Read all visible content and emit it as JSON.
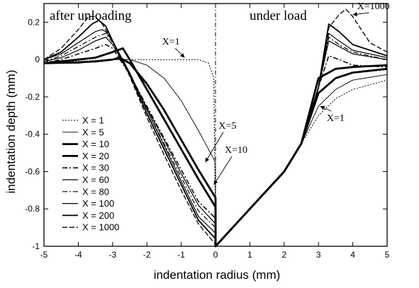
{
  "chart_data": {
    "type": "line",
    "title": "",
    "xlabel": "indentation radius (mm)",
    "ylabel": "indentation depth (mm)",
    "xlim": [
      -5,
      5
    ],
    "ylim": [
      -1,
      0.3
    ],
    "x_ticks": [
      -5,
      -4,
      -3,
      -2,
      -1,
      0,
      1,
      2,
      3,
      4,
      5
    ],
    "y_ticks": [
      0.2,
      0,
      -0.2,
      -0.4,
      -0.6,
      -0.8,
      -1
    ],
    "x_tick_labels": [
      "-5",
      "-4",
      "-3",
      "-2",
      "-1",
      "0",
      "1",
      "2",
      "3",
      "4",
      "5"
    ],
    "y_tick_labels": [
      "0.2",
      "0",
      "-0.2",
      "-0.4",
      "-0.6",
      "-0.8",
      "-1"
    ],
    "panel_labels": {
      "left": "after unloading",
      "right": "under load"
    },
    "divider_x": 0,
    "grid": false,
    "legend_position": "lower-left",
    "annotations": [
      {
        "text": "X=1",
        "x": -1.3,
        "y": 0.08,
        "arrow_to": [
          -0.9,
          0.01
        ]
      },
      {
        "text": "X=5",
        "x": 0.35,
        "y": -0.37,
        "arrow_to": [
          -0.3,
          -0.55
        ]
      },
      {
        "text": "X=10",
        "x": 0.6,
        "y": -0.5,
        "arrow_to": [
          -0.05,
          -0.67
        ]
      },
      {
        "text": "X=1000",
        "x": 4.6,
        "y": 0.27,
        "arrow_to": [
          4.0,
          0.24
        ]
      },
      {
        "text": "X=1",
        "x": 3.5,
        "y": -0.33,
        "arrow_to": [
          3.05,
          -0.25
        ]
      }
    ],
    "series": [
      {
        "name": "X = 1",
        "style": "dotted",
        "width": 1,
        "x": [
          -5,
          -4,
          -3,
          -2,
          -1,
          -0.5,
          -0.2,
          -0.05,
          0,
          0,
          1,
          2,
          2.5,
          3,
          3.5,
          4,
          5
        ],
        "y": [
          -0.01,
          -0.01,
          0.0,
          0.0,
          0.0,
          0.0,
          -0.02,
          -0.1,
          -0.98,
          -1,
          -0.8,
          -0.6,
          -0.45,
          -0.3,
          -0.21,
          -0.16,
          -0.11
        ]
      },
      {
        "name": "X = 5",
        "style": "solid",
        "width": 0.9,
        "x": [
          -5,
          -4,
          -3.5,
          -3,
          -2.5,
          -2,
          -1.5,
          -1,
          -0.5,
          0,
          0,
          1,
          2,
          2.5,
          3,
          3.5,
          4,
          5
        ],
        "y": [
          -0.02,
          -0.02,
          -0.01,
          0.0,
          0.0,
          -0.03,
          -0.1,
          -0.22,
          -0.38,
          -0.55,
          -1,
          -0.8,
          -0.6,
          -0.45,
          -0.25,
          -0.16,
          -0.11,
          -0.08
        ]
      },
      {
        "name": "X = 10",
        "style": "solid",
        "width": 2.8,
        "x": [
          -5,
          -4,
          -3.5,
          -3,
          -2.8,
          -2.5,
          -2,
          -1.5,
          -1,
          -0.5,
          0,
          0,
          1,
          2,
          2.5,
          3,
          3.5,
          4,
          5
        ],
        "y": [
          -0.02,
          -0.015,
          -0.01,
          0.0,
          0.01,
          -0.02,
          -0.13,
          -0.27,
          -0.43,
          -0.59,
          -0.74,
          -1,
          -0.8,
          -0.6,
          -0.45,
          -0.18,
          -0.1,
          -0.07,
          -0.05
        ]
      },
      {
        "name": "X = 20",
        "style": "solid",
        "width": 2.8,
        "x": [
          -5,
          -4.5,
          -4,
          -3.5,
          -3,
          -2.7,
          -2.5,
          -2,
          -1.5,
          -1,
          -0.5,
          0,
          0,
          1,
          2,
          2.5,
          3,
          3.5,
          4,
          5
        ],
        "y": [
          -0.02,
          -0.01,
          0.0,
          0.01,
          0.04,
          0.06,
          0.0,
          -0.16,
          -0.32,
          -0.48,
          -0.64,
          -0.79,
          -1,
          -0.8,
          -0.6,
          -0.45,
          -0.1,
          -0.05,
          -0.04,
          -0.03
        ]
      },
      {
        "name": "X = 30",
        "style": "dashdot",
        "width": 1.5,
        "x": [
          -5,
          -4.5,
          -4,
          -3.5,
          -3.2,
          -3,
          -2.5,
          -2,
          -1.5,
          -1,
          -0.5,
          0,
          0,
          1,
          2,
          2.5,
          3,
          3.3,
          3.6,
          4,
          5
        ],
        "y": [
          -0.02,
          0.0,
          0.03,
          0.06,
          0.08,
          0.06,
          -0.08,
          -0.25,
          -0.42,
          -0.59,
          -0.76,
          -0.85,
          -1,
          -0.8,
          -0.6,
          -0.45,
          -0.15,
          0.02,
          0.0,
          -0.03,
          -0.04
        ]
      },
      {
        "name": "X = 60",
        "style": "solid",
        "width": 1.2,
        "x": [
          -5,
          -4.5,
          -4,
          -3.5,
          -3.2,
          -3,
          -2.5,
          -2,
          -1.5,
          -1,
          -0.5,
          0,
          0,
          1,
          2,
          2.5,
          3,
          3.3,
          3.6,
          4,
          5
        ],
        "y": [
          -0.01,
          0.01,
          0.05,
          0.1,
          0.12,
          0.08,
          -0.08,
          -0.26,
          -0.43,
          -0.61,
          -0.78,
          -0.88,
          -1,
          -0.8,
          -0.6,
          -0.45,
          -0.15,
          0.1,
          0.07,
          0.03,
          0.0
        ]
      },
      {
        "name": "X = 80",
        "style": "dashdot",
        "width": 1.2,
        "x": [
          -5,
          -4.5,
          -4,
          -3.5,
          -3.2,
          -3,
          -2.5,
          -2,
          -1.5,
          -1,
          -0.5,
          0,
          0,
          1,
          2,
          2.5,
          3,
          3.3,
          3.6,
          4,
          5
        ],
        "y": [
          -0.01,
          0.02,
          0.07,
          0.12,
          0.14,
          0.09,
          -0.08,
          -0.27,
          -0.45,
          -0.63,
          -0.81,
          -0.9,
          -1,
          -0.8,
          -0.6,
          -0.45,
          -0.15,
          0.12,
          0.08,
          0.04,
          0.0
        ]
      },
      {
        "name": "X = 100",
        "style": "solid",
        "width": 1.2,
        "x": [
          -5,
          -4.5,
          -4,
          -3.5,
          -3.3,
          -3.2,
          -3,
          -2.5,
          -2,
          -1.5,
          -1,
          -0.5,
          0,
          0,
          1,
          2,
          2.5,
          3,
          3.3,
          3.6,
          4,
          5
        ],
        "y": [
          0.0,
          0.03,
          0.09,
          0.15,
          0.16,
          0.15,
          0.1,
          -0.07,
          -0.27,
          -0.46,
          -0.65,
          -0.84,
          -0.93,
          -1,
          -0.8,
          -0.6,
          -0.45,
          -0.15,
          0.14,
          0.1,
          0.05,
          0.01
        ]
      },
      {
        "name": "X = 200",
        "style": "solid",
        "width": 1.8,
        "x": [
          -5,
          -4.5,
          -4,
          -3.6,
          -3.4,
          -3.2,
          -3,
          -2.5,
          -2,
          -1.5,
          -1,
          -0.5,
          0,
          0,
          1,
          2,
          2.5,
          3,
          3.3,
          3.6,
          4,
          5
        ],
        "y": [
          0.0,
          0.04,
          0.12,
          0.19,
          0.21,
          0.18,
          0.1,
          -0.08,
          -0.29,
          -0.48,
          -0.67,
          -0.86,
          -0.96,
          -1,
          -0.8,
          -0.6,
          -0.45,
          -0.15,
          0.19,
          0.15,
          0.08,
          0.02
        ]
      },
      {
        "name": "X = 1000",
        "style": "dashed",
        "width": 1.3,
        "x": [
          -5,
          -4.5,
          -4,
          -3.7,
          -3.5,
          -3.3,
          -3,
          -2.5,
          -2,
          -1.5,
          -1,
          -0.5,
          0,
          0,
          1,
          2,
          2.5,
          3,
          3.3,
          3.6,
          3.8,
          4,
          4.5,
          5
        ],
        "y": [
          0.0,
          0.06,
          0.16,
          0.23,
          0.23,
          0.19,
          0.1,
          -0.09,
          -0.31,
          -0.51,
          -0.7,
          -0.88,
          -0.99,
          -1,
          -0.8,
          -0.6,
          -0.45,
          -0.15,
          0.17,
          0.24,
          0.27,
          0.23,
          0.09,
          0.04
        ]
      }
    ]
  }
}
